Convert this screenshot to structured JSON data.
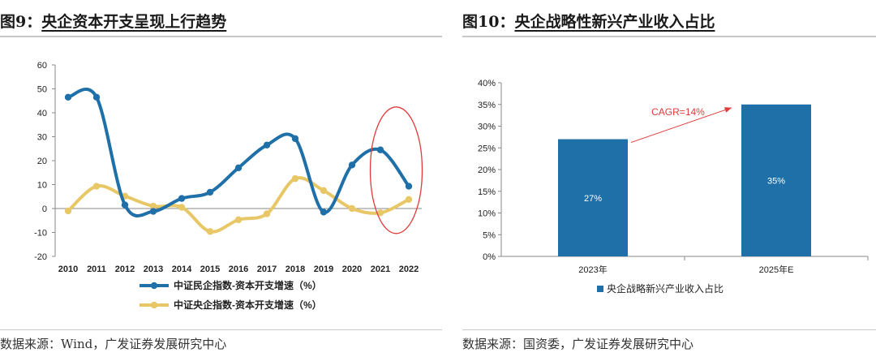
{
  "left": {
    "title_num": "图9：",
    "title_text": "央企资本开支呈现上行趋势",
    "source": "数据来源：Wind，广发证券发展研究中心"
  },
  "right": {
    "title_num": "图10：",
    "title_text": "央企战略性新兴产业收入占比",
    "source": "数据来源：国资委，广发证券发展研究中心"
  },
  "chart_data": [
    {
      "type": "line",
      "title": "",
      "x": [
        "2010",
        "2011",
        "2012",
        "2013",
        "2014",
        "2015",
        "2016",
        "2017",
        "2018",
        "2019",
        "2020",
        "2021",
        "2022"
      ],
      "ylim": [
        -20,
        60
      ],
      "yticks": [
        -20,
        -10,
        0,
        10,
        20,
        30,
        40,
        50,
        60
      ],
      "grid": false,
      "legend": "bottom",
      "series": [
        {
          "name": "中证民企指数-资本开支增速（%）",
          "color": "#1f6fa8",
          "values": [
            46.5,
            46.5,
            1.5,
            -1.2,
            4.2,
            6.8,
            17,
            26.5,
            29.2,
            -1.5,
            18.2,
            24.5,
            9.3
          ]
        },
        {
          "name": "中证央企指数-资本开支增速（%）",
          "color": "#e8c766",
          "values": [
            -1,
            9.3,
            5.2,
            1,
            0.5,
            -9.6,
            -4.7,
            -2.2,
            12.5,
            7.5,
            0,
            -1.8,
            3.8
          ]
        }
      ],
      "annotation": {
        "type": "ellipse",
        "color": "#e23a3a",
        "around": "2021-2022"
      }
    },
    {
      "type": "bar",
      "title": "",
      "categories": [
        "2023年",
        "2025年E"
      ],
      "ylim": [
        0,
        40
      ],
      "yticks": [
        "0%",
        "5%",
        "10%",
        "15%",
        "20%",
        "25%",
        "30%",
        "35%",
        "40%"
      ],
      "series": [
        {
          "name": "央企战略新兴产业收入占比",
          "color": "#1f6fa8",
          "values": [
            27,
            35
          ]
        }
      ],
      "data_labels": [
        "27%",
        "35%"
      ],
      "annotation": {
        "text": "CAGR=14%",
        "color": "#e23a3a"
      },
      "legend": "bottom"
    }
  ]
}
